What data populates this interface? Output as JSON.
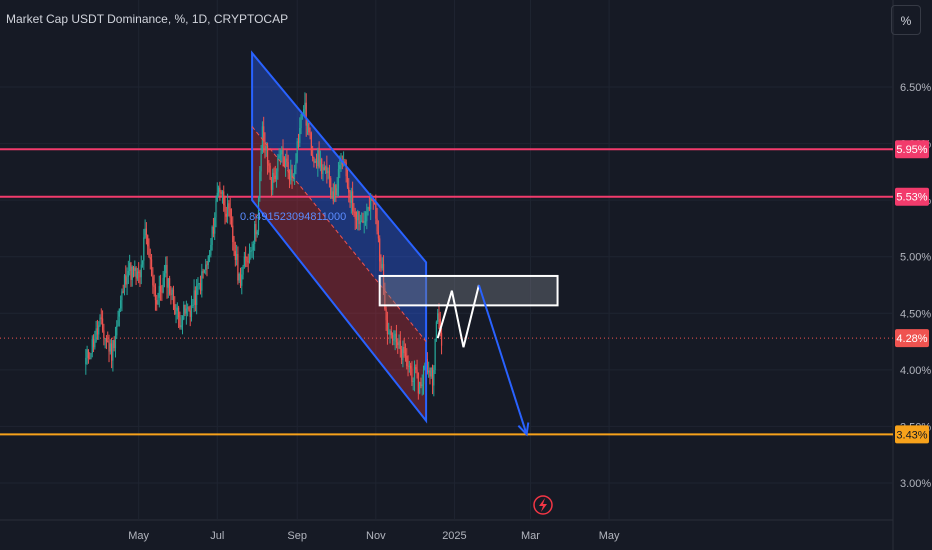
{
  "header": {
    "title": "Market Cap USDT Dominance, %, 1D, CRYPTOCAP",
    "unit_button": "%"
  },
  "colors": {
    "background": "#161a25",
    "up_candle": "#26a69a",
    "down_candle": "#ef5350",
    "resistance_line": "#f23b6c",
    "support_line": "#f7a21b",
    "channel_stroke": "#2962ff",
    "projection": "#2962ff"
  },
  "annotation_text": "0.8491523094811000",
  "chart_data": {
    "type": "candlestick",
    "title": "Market Cap USDT Dominance, %, 1D, CRYPTOCAP",
    "unit": "%",
    "x_ticks": [
      "May",
      "Jul",
      "Sep",
      "Nov",
      "2025",
      "Mar",
      "May"
    ],
    "y_ticks": [
      "6.50%",
      "6.00%",
      "5.50%",
      "5.00%",
      "4.50%",
      "4.00%",
      "3.50%",
      "3.00%"
    ],
    "ylim": [
      2.6,
      6.85
    ],
    "grid": true,
    "price_labels": [
      {
        "value": 5.95,
        "text": "5.95%",
        "kind": "resistance"
      },
      {
        "value": 5.53,
        "text": "5.53%",
        "kind": "resistance"
      },
      {
        "value": 4.28,
        "text": "4.28%",
        "kind": "last"
      },
      {
        "value": 3.43,
        "text": "3.43%",
        "kind": "support"
      }
    ],
    "horizontal_levels": [
      5.95,
      5.53,
      3.43
    ],
    "last_price": 4.28,
    "price_path": [
      {
        "date": "2024-03-20",
        "value": 4.05
      },
      {
        "date": "2024-04-01",
        "value": 4.4
      },
      {
        "date": "2024-04-10",
        "value": 4.15
      },
      {
        "date": "2024-04-22",
        "value": 4.9
      },
      {
        "date": "2024-05-02",
        "value": 4.8
      },
      {
        "date": "2024-05-06",
        "value": 5.2
      },
      {
        "date": "2024-05-15",
        "value": 4.6
      },
      {
        "date": "2024-05-22",
        "value": 4.85
      },
      {
        "date": "2024-06-01",
        "value": 4.45
      },
      {
        "date": "2024-06-11",
        "value": 4.55
      },
      {
        "date": "2024-06-25",
        "value": 5.0
      },
      {
        "date": "2024-07-02",
        "value": 5.65
      },
      {
        "date": "2024-07-10",
        "value": 5.35
      },
      {
        "date": "2024-07-18",
        "value": 4.8
      },
      {
        "date": "2024-07-26",
        "value": 5.05
      },
      {
        "date": "2024-08-01",
        "value": 5.3
      },
      {
        "date": "2024-08-05",
        "value": 6.1
      },
      {
        "date": "2024-08-12",
        "value": 5.65
      },
      {
        "date": "2024-08-20",
        "value": 5.9
      },
      {
        "date": "2024-08-28",
        "value": 5.7
      },
      {
        "date": "2024-09-06",
        "value": 6.35
      },
      {
        "date": "2024-09-12",
        "value": 5.95
      },
      {
        "date": "2024-09-20",
        "value": 5.8
      },
      {
        "date": "2024-09-30",
        "value": 5.55
      },
      {
        "date": "2024-10-06",
        "value": 5.85
      },
      {
        "date": "2024-10-14",
        "value": 5.45
      },
      {
        "date": "2024-10-22",
        "value": 5.3
      },
      {
        "date": "2024-10-30",
        "value": 5.5
      },
      {
        "date": "2024-11-06",
        "value": 4.85
      },
      {
        "date": "2024-11-10",
        "value": 4.4
      },
      {
        "date": "2024-11-18",
        "value": 4.2
      },
      {
        "date": "2024-11-28",
        "value": 4.0
      },
      {
        "date": "2024-12-05",
        "value": 3.85
      },
      {
        "date": "2024-12-10",
        "value": 4.05
      },
      {
        "date": "2024-12-15",
        "value": 3.95
      },
      {
        "date": "2024-12-19",
        "value": 4.5
      },
      {
        "date": "2024-12-22",
        "value": 4.28
      }
    ],
    "channel": {
      "upper": [
        {
          "date": "2024-07-28",
          "value": 6.8
        },
        {
          "date": "2024-12-10",
          "value": 4.95
        }
      ],
      "lower": [
        {
          "date": "2024-07-28",
          "value": 5.5
        },
        {
          "date": "2024-12-10",
          "value": 3.55
        }
      ]
    },
    "zone": {
      "date_start": "2024-11-04",
      "date_end": "2025-03-22",
      "top": 4.83,
      "bottom": 4.57
    },
    "projection": [
      {
        "date": "2024-12-19",
        "value": 4.28
      },
      {
        "date": "2024-12-30",
        "value": 4.7
      },
      {
        "date": "2025-01-08",
        "value": 4.2
      },
      {
        "date": "2025-01-20",
        "value": 4.75
      },
      {
        "date": "2025-02-26",
        "value": 3.43
      }
    ]
  }
}
